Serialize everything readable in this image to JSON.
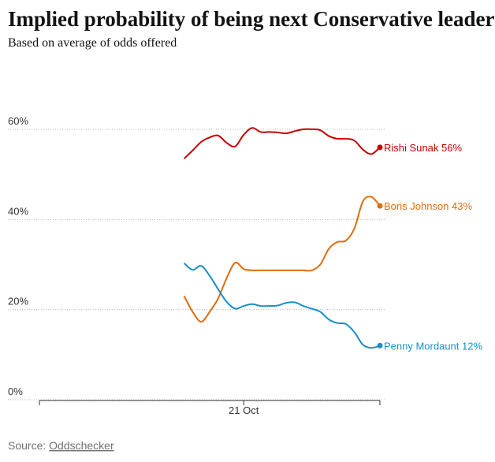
{
  "chart_data": {
    "type": "line",
    "title": "Implied probability of being next Conservative leader",
    "subtitle": "Based on average of odds offered",
    "source_label": "Source:",
    "source": "Oddschecker",
    "categories": [
      null,
      null,
      null,
      null,
      null,
      null,
      null,
      null,
      null,
      null,
      null,
      null,
      null,
      null,
      null,
      null,
      null,
      null,
      null,
      null,
      null,
      null,
      null,
      null,
      "21 Oct",
      null,
      null,
      null,
      null,
      null,
      null,
      null,
      null,
      null,
      null,
      null,
      null,
      null,
      null,
      null,
      null
    ],
    "series": [
      {
        "name": "Rishi Sunak",
        "color": "#c70000",
        "values": [
          null,
          null,
          null,
          null,
          null,
          null,
          null,
          null,
          null,
          null,
          null,
          null,
          null,
          null,
          null,
          null,
          null,
          53.5,
          55.3,
          57.2,
          58.2,
          58.6,
          57,
          56.2,
          58.8,
          60.3,
          59.4,
          59.4,
          59.3,
          59.1,
          59.6,
          60,
          60,
          59.8,
          58.5,
          57.9,
          57.9,
          57.5,
          55.5,
          54.5,
          56
        ],
        "value_labels": [
          null,
          null,
          null,
          null,
          null,
          null,
          null,
          null,
          null,
          null,
          null,
          null,
          null,
          null,
          null,
          null,
          null,
          null,
          null,
          null,
          null,
          null,
          null,
          null,
          null,
          null,
          null,
          null,
          null,
          null,
          null,
          null,
          null,
          null,
          null,
          null,
          null,
          null,
          null,
          null,
          "56%"
        ]
      },
      {
        "name": "Boris Johnson",
        "color": "#e06c0f",
        "values": [
          null,
          null,
          null,
          null,
          null,
          null,
          null,
          null,
          null,
          null,
          null,
          null,
          null,
          null,
          null,
          null,
          null,
          23,
          19.5,
          17.3,
          19.5,
          22.5,
          27,
          30.4,
          29,
          28.7,
          28.7,
          28.7,
          28.7,
          28.7,
          28.7,
          28.7,
          28.7,
          30,
          33.5,
          35,
          35.3,
          38,
          44,
          45,
          43
        ],
        "value_labels": [
          null,
          null,
          null,
          null,
          null,
          null,
          null,
          null,
          null,
          null,
          null,
          null,
          null,
          null,
          null,
          null,
          null,
          null,
          null,
          null,
          null,
          null,
          null,
          null,
          null,
          null,
          null,
          null,
          null,
          null,
          null,
          null,
          null,
          null,
          null,
          null,
          null,
          null,
          null,
          null,
          "43%"
        ]
      },
      {
        "name": "Penny Mordaunt",
        "color": "#1a8ec9",
        "values": [
          null,
          null,
          null,
          null,
          null,
          null,
          null,
          null,
          null,
          null,
          null,
          null,
          null,
          null,
          null,
          null,
          null,
          30.3,
          28.8,
          29.7,
          27.5,
          24.5,
          21.7,
          20.2,
          20.8,
          21.2,
          20.8,
          20.8,
          20.9,
          21.5,
          21.6,
          20.8,
          20.2,
          19.5,
          17.8,
          17,
          16.8,
          15,
          12.2,
          11.5,
          12
        ],
        "value_labels": [
          null,
          null,
          null,
          null,
          null,
          null,
          null,
          null,
          null,
          null,
          null,
          null,
          null,
          null,
          null,
          null,
          null,
          null,
          null,
          null,
          null,
          null,
          null,
          null,
          null,
          null,
          null,
          null,
          null,
          null,
          null,
          null,
          null,
          null,
          null,
          null,
          null,
          null,
          null,
          null,
          "12%"
        ]
      }
    ],
    "ylim": [
      0,
      60
    ],
    "yticks": [
      {
        "value": 0,
        "label": "0%"
      },
      {
        "value": 20,
        "label": "20%"
      },
      {
        "value": 40,
        "label": "40%"
      },
      {
        "value": 60,
        "label": "60%"
      }
    ],
    "grid": true
  }
}
